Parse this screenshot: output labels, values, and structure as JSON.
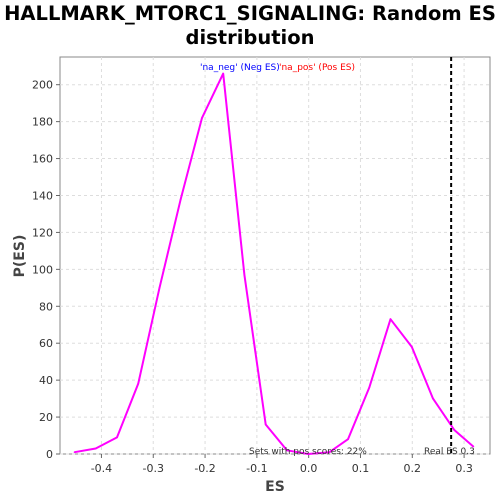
{
  "title_line1": "HALLMARK_MTORC1_SIGNALING: Random ES",
  "title_line2": "distribution",
  "chart_data": {
    "type": "line",
    "title": "HALLMARK_MTORC1_SIGNALING: Random ES distribution",
    "xlabel": "ES",
    "ylabel": "P(ES)",
    "xlim": [
      -0.48,
      0.35
    ],
    "ylim": [
      0,
      215
    ],
    "x_ticks": [
      -0.4,
      -0.3,
      -0.2,
      -0.1,
      0.0,
      0.1,
      0.2,
      0.3
    ],
    "x_tick_labels": [
      "-0.4",
      "-0.3",
      "-0.2",
      "-0.1",
      "0.0",
      "0.1",
      "0.2",
      "0.3"
    ],
    "y_ticks": [
      0,
      20,
      40,
      60,
      80,
      100,
      120,
      140,
      160,
      180,
      200
    ],
    "y_tick_labels": [
      "0",
      "20",
      "40",
      "60",
      "80",
      "100",
      "120",
      "140",
      "160",
      "180",
      "200"
    ],
    "grid": true,
    "series": [
      {
        "color": "#ff00ff",
        "x": [
          -0.452,
          -0.411,
          -0.37,
          -0.329,
          -0.288,
          -0.247,
          -0.206,
          -0.165,
          -0.124,
          -0.083,
          -0.042,
          -0.001,
          0.04,
          0.076,
          0.117,
          0.158,
          0.199,
          0.24,
          0.281,
          0.318
        ],
        "y": [
          1,
          3,
          9,
          38,
          90,
          138,
          182,
          206,
          97,
          16,
          2,
          0,
          1,
          8,
          36,
          73,
          58,
          30,
          13,
          4
        ]
      }
    ],
    "legend": [
      {
        "label": "'na_neg' (Neg ES)",
        "color": "#0000ff"
      },
      {
        "label": "'na_pos' (Pos ES)",
        "color": "#ff0000"
      }
    ],
    "vline": {
      "x": 0.275,
      "style": "dashed",
      "color": "#000000"
    },
    "annotations": [
      {
        "text": "Sets with pos scores: 22%"
      },
      {
        "text": "Real ES 0.3"
      }
    ]
  }
}
